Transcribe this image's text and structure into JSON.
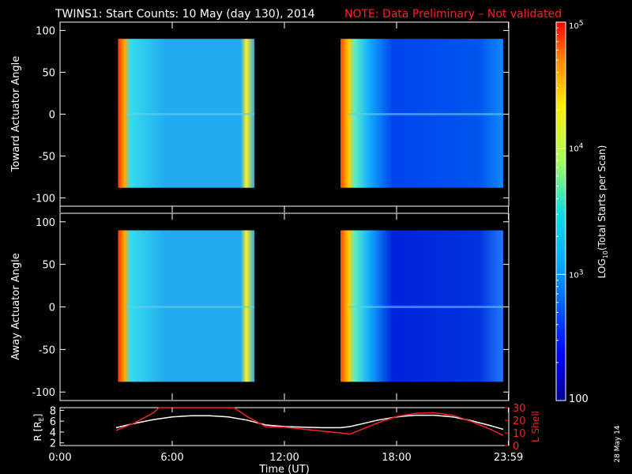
{
  "title": {
    "main": "TWINS1: Start Counts: 10 May (day 130), 2014",
    "note": "NOTE: Data Preliminary – Not validated"
  },
  "stamp": "28 May 14",
  "colors": {
    "background": "#000000",
    "foreground": "#ffffff",
    "note": "#ff2020",
    "lshell": "#ff2020"
  },
  "chart_data": [
    {
      "type": "heatmap",
      "panel": "toward",
      "ylabel": "Toward Actuator Angle",
      "yticks": [
        -100,
        -50,
        0,
        50,
        100
      ],
      "ylim": [
        -110,
        110
      ],
      "xlim": [
        0,
        24
      ],
      "data_extent_y": [
        -88,
        90
      ],
      "blocks": [
        {
          "start_hour": 3.1,
          "end_hour": 10.4,
          "level": 0.42
        },
        {
          "start_hour": 15.0,
          "end_hour": 23.7,
          "level": 0.25
        }
      ]
    },
    {
      "type": "heatmap",
      "panel": "away",
      "ylabel": "Away Actuator Angle",
      "yticks": [
        -100,
        -50,
        0,
        50,
        100
      ],
      "ylim": [
        -110,
        110
      ],
      "xlim": [
        0,
        24
      ],
      "data_extent_y": [
        -88,
        90
      ],
      "blocks": [
        {
          "start_hour": 3.1,
          "end_hour": 10.4,
          "level": 0.42
        },
        {
          "start_hour": 15.0,
          "end_hour": 23.7,
          "level": 0.2
        }
      ]
    },
    {
      "type": "line",
      "panel": "orbit",
      "xlabel": "Time (UT)",
      "xticks": [
        "0:00",
        "6:00",
        "12:00",
        "18:00",
        "23:59"
      ],
      "xlim": [
        0,
        24
      ],
      "left_axis": {
        "label": "R [R",
        "label_sub": "E",
        "label_end": "]",
        "ticks": [
          2,
          4,
          6,
          8
        ],
        "lim": [
          1.5,
          8.5
        ]
      },
      "right_axis": {
        "label": "L Shell",
        "ticks": [
          0,
          10,
          20,
          30
        ],
        "lim": [
          0,
          30
        ]
      },
      "series": [
        {
          "axis": "left",
          "color": "#ffffff",
          "x": [
            3.0,
            4.0,
            5.0,
            6.0,
            7.0,
            8.0,
            9.0,
            10.0,
            11.0,
            12.0,
            13.0,
            14.0,
            15.0,
            15.5,
            16.0,
            17.0,
            18.0,
            19.0,
            20.0,
            21.0,
            22.0,
            23.0,
            23.7
          ],
          "y": [
            4.8,
            5.6,
            6.3,
            6.8,
            7.0,
            7.0,
            6.8,
            6.2,
            5.3,
            5.0,
            4.9,
            4.8,
            4.8,
            5.0,
            5.4,
            6.2,
            6.8,
            7.1,
            7.1,
            6.8,
            6.1,
            5.2,
            4.5
          ]
        },
        {
          "axis": "right",
          "color": "#ff2020",
          "x": [
            3.0,
            4.0,
            5.0,
            5.3,
            9.3,
            10.0,
            11.0,
            12.0,
            13.0,
            14.0,
            15.0,
            15.5,
            16.0,
            17.0,
            18.0,
            19.0,
            20.0,
            21.0,
            22.0,
            23.0,
            23.7
          ],
          "y": [
            12,
            18,
            26,
            30,
            30,
            23,
            15,
            14.5,
            13,
            11.5,
            10,
            9,
            12,
            18,
            23,
            25.5,
            26,
            24,
            19,
            13,
            8
          ]
        }
      ]
    }
  ],
  "colorbar": {
    "label_pre": "LOG",
    "label_sub": "10",
    "label_post": "(Total Starts per Scan)",
    "tick_labels": [
      {
        "base": "10",
        "exp": "5",
        "value_exp": 5
      },
      {
        "base": "10",
        "exp": "4",
        "value_exp": 4
      },
      {
        "base": "10",
        "exp": "3",
        "value_exp": 3
      },
      {
        "base": "100",
        "exp": "",
        "value_exp": 2
      }
    ],
    "range_exp": [
      2,
      5
    ]
  }
}
